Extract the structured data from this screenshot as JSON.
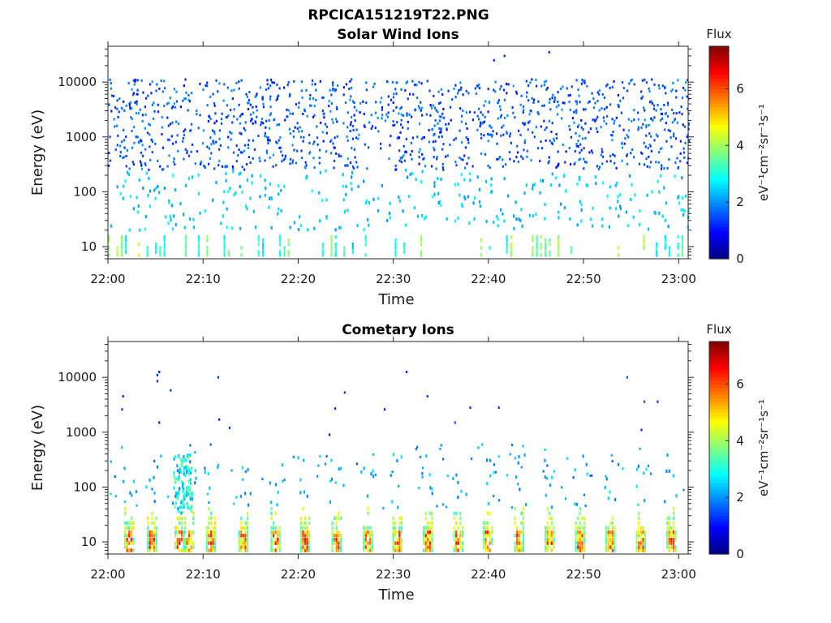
{
  "figure_title": "RPCICA151219T22.PNG",
  "chart_data": [
    {
      "type": "heatmap",
      "title": "Solar Wind Ions",
      "xlabel": "Time",
      "ylabel": "Energy (eV)",
      "x_ticks": [
        "22:00",
        "22:10",
        "22:20",
        "22:30",
        "22:40",
        "22:50",
        "23:00"
      ],
      "xlim_minutes": [
        0,
        61
      ],
      "y_scale": "log",
      "ylim": [
        6,
        45000
      ],
      "y_ticks": [
        10,
        100,
        1000,
        10000
      ],
      "y_tick_labels": [
        "10",
        "100",
        "1000",
        "10000"
      ],
      "colorbar": {
        "label": "Flux",
        "units": "eV⁻¹cm⁻²sr⁻¹s⁻¹",
        "range": [
          0,
          7.5
        ],
        "ticks": [
          "0",
          "2",
          "4",
          "6"
        ],
        "colormap": "jet"
      },
      "description_bands": [
        {
          "energy_range_eV": [
            300,
            15000
          ],
          "flux_range": [
            1.0,
            2.2
          ],
          "density": "sparse scattered"
        },
        {
          "energy_range_eV": [
            20,
            300
          ],
          "flux_range": [
            2.0,
            3.0
          ],
          "density": "sparse"
        },
        {
          "energy_range_eV": [
            6,
            20
          ],
          "flux_range": [
            2.5,
            4.5
          ],
          "density": "periodic columns"
        }
      ]
    },
    {
      "type": "heatmap",
      "title": "Cometary Ions",
      "xlabel": "Time",
      "ylabel": "Energy (eV)",
      "x_ticks": [
        "22:00",
        "22:10",
        "22:20",
        "22:30",
        "22:40",
        "22:50",
        "23:00"
      ],
      "xlim_minutes": [
        0,
        61
      ],
      "y_scale": "log",
      "ylim": [
        6,
        45000
      ],
      "y_ticks": [
        10,
        100,
        1000,
        10000
      ],
      "y_tick_labels": [
        "10",
        "100",
        "1000",
        "10000"
      ],
      "colorbar": {
        "label": "Flux",
        "units": "eV⁻¹cm⁻²sr⁻¹s⁻¹",
        "range": [
          0,
          7.5
        ],
        "ticks": [
          "0",
          "2",
          "4",
          "6"
        ],
        "colormap": "jet"
      },
      "burst_times_minutes": [
        2.2,
        4.6,
        7.5,
        8.5,
        10.8,
        14.2,
        17.6,
        20.7,
        24.0,
        27.3,
        30.4,
        33.6,
        36.8,
        39.9,
        43.2,
        46.4,
        49.6,
        52.8,
        56.0,
        59.2
      ],
      "burst_energy_range_eV": [
        6,
        50
      ],
      "burst_peak_flux": 6.5,
      "description_bands": [
        {
          "energy_range_eV": [
            6,
            50
          ],
          "flux_range": [
            3.0,
            6.8
          ],
          "density": "periodic bursts"
        },
        {
          "energy_range_eV": [
            50,
            600
          ],
          "flux_range": [
            1.5,
            2.8
          ],
          "density": "sparse, clustered near bursts"
        },
        {
          "energy_range_eV": [
            600,
            13000
          ],
          "flux_range": [
            1.0,
            1.8
          ],
          "density": "rare isolated"
        }
      ]
    }
  ]
}
